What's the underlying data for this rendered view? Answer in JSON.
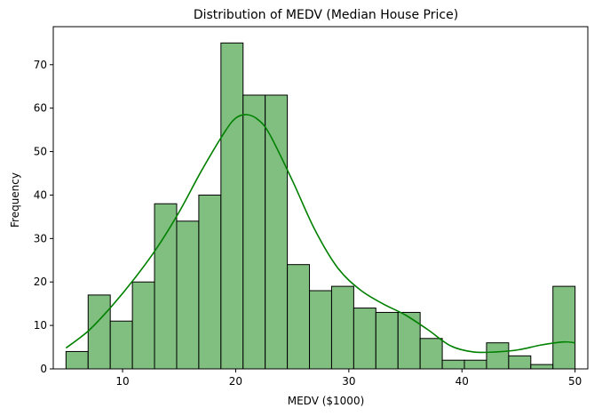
{
  "chart_data": {
    "type": "bar",
    "title": "Distribution of MEDV (Median House Price)",
    "xlabel": "MEDV ($1000)",
    "ylabel": "Frequency",
    "xlim": [
      3.875,
      51.125
    ],
    "ylim": [
      0,
      78.75
    ],
    "xticks": [
      10,
      20,
      30,
      40,
      50
    ],
    "yticks": [
      0,
      10,
      20,
      30,
      40,
      50,
      60,
      70
    ],
    "bin_edges": [
      5.0,
      6.957,
      8.913,
      10.87,
      12.826,
      14.783,
      16.739,
      18.696,
      20.652,
      22.609,
      24.565,
      26.522,
      28.478,
      30.435,
      32.391,
      34.348,
      36.304,
      38.261,
      40.217,
      42.174,
      44.13,
      46.087,
      48.043,
      50.0
    ],
    "counts": [
      4,
      17,
      11,
      20,
      38,
      34,
      40,
      75,
      63,
      63,
      24,
      18,
      19,
      14,
      13,
      13,
      7,
      2,
      2,
      6,
      3,
      1,
      19
    ],
    "kde": {
      "x": [
        5,
        7,
        9,
        11,
        13,
        15,
        17,
        19,
        20,
        21,
        22,
        23,
        25,
        27,
        29,
        31,
        33,
        35,
        37,
        39,
        41,
        43,
        45,
        47,
        49,
        50
      ],
      "y": [
        4.8,
        8.8,
        14.3,
        20.6,
        27.7,
        36.1,
        45.7,
        54.4,
        57.7,
        58.5,
        57.3,
        54.0,
        43.4,
        32.0,
        23.3,
        18.2,
        15.0,
        12.4,
        9.0,
        5.3,
        3.9,
        3.9,
        4.4,
        5.5,
        6.2,
        6.0
      ]
    },
    "colors": {
      "bar_fill": "#80bf80",
      "bar_edge": "#000000",
      "kde_line": "#008000"
    },
    "grid": false,
    "legend": "none"
  }
}
